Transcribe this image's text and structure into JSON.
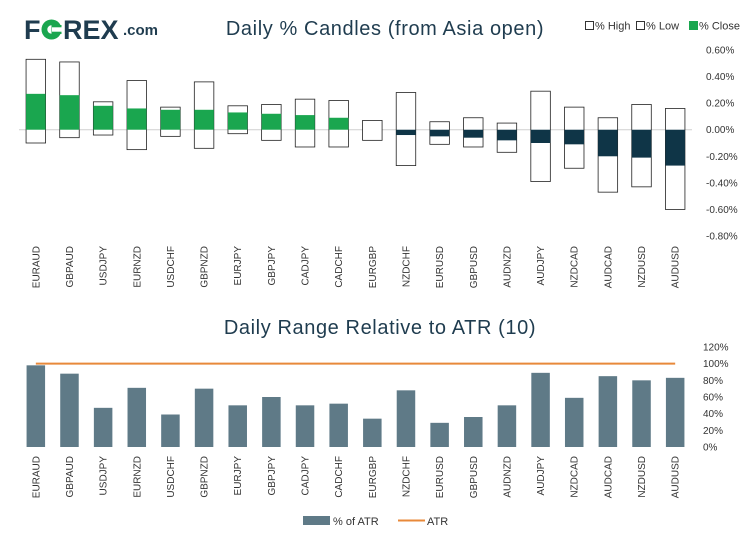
{
  "brand": {
    "logo_left": "F",
    "logo_right": "REX",
    "logo_suffix": ".com"
  },
  "colors": {
    "positive": "#1aa64f",
    "negative": "#0f3547",
    "bar": "#5f7a87",
    "atr_line": "#e8893a",
    "title": "#1f3c4f"
  },
  "chart_data": [
    {
      "type": "candlestick",
      "title": "Daily % Candles (from Asia open)",
      "legend": [
        "% High",
        "% Low",
        "% Close"
      ],
      "categories": [
        "EURAUD",
        "GBPAUD",
        "USDJPY",
        "EURNZD",
        "USDCHF",
        "GBPNZD",
        "EURJPY",
        "GBPJPY",
        "CADJPY",
        "CADCHF",
        "EURGBP",
        "NZDCHF",
        "EURUSD",
        "GBPUSD",
        "AUDNZD",
        "AUDJPY",
        "NZDCAD",
        "AUDCAD",
        "NZDUSD",
        "AUDUSD"
      ],
      "high": [
        0.53,
        0.51,
        0.21,
        0.37,
        0.17,
        0.36,
        0.18,
        0.19,
        0.23,
        0.22,
        0.07,
        0.28,
        0.06,
        0.09,
        0.05,
        0.29,
        0.17,
        0.09,
        0.19,
        0.16
      ],
      "low": [
        -0.1,
        -0.06,
        -0.04,
        -0.15,
        -0.05,
        -0.14,
        -0.03,
        -0.08,
        -0.13,
        -0.13,
        -0.08,
        -0.27,
        -0.11,
        -0.13,
        -0.17,
        -0.39,
        -0.29,
        -0.47,
        -0.43,
        -0.6
      ],
      "close": [
        0.27,
        0.26,
        0.18,
        0.16,
        0.15,
        0.15,
        0.13,
        0.12,
        0.11,
        0.09,
        0.0,
        -0.04,
        -0.05,
        -0.06,
        -0.08,
        -0.1,
        -0.11,
        -0.2,
        -0.21,
        -0.27
      ],
      "yticks": [
        "0.60%",
        "0.40%",
        "0.20%",
        "0.00%",
        "-0.20%",
        "-0.40%",
        "-0.60%",
        "-0.80%"
      ],
      "ylim": [
        -0.8,
        0.6
      ]
    },
    {
      "type": "bar",
      "title": "Daily Range Relative to ATR (10)",
      "legend": [
        "% of ATR",
        "ATR"
      ],
      "categories": [
        "EURAUD",
        "GBPAUD",
        "USDJPY",
        "EURNZD",
        "USDCHF",
        "GBPNZD",
        "EURJPY",
        "GBPJPY",
        "CADJPY",
        "CADCHF",
        "EURGBP",
        "NZDCHF",
        "EURUSD",
        "GBPUSD",
        "AUDNZD",
        "AUDJPY",
        "NZDCAD",
        "AUDCAD",
        "NZDUSD",
        "AUDUSD"
      ],
      "values": [
        98,
        88,
        47,
        71,
        39,
        70,
        50,
        60,
        50,
        52,
        34,
        68,
        29,
        36,
        50,
        89,
        59,
        85,
        80,
        83
      ],
      "atr": 100,
      "yticks": [
        "120%",
        "100%",
        "80%",
        "60%",
        "40%",
        "20%",
        "0%"
      ],
      "ylim": [
        0,
        120
      ]
    }
  ]
}
